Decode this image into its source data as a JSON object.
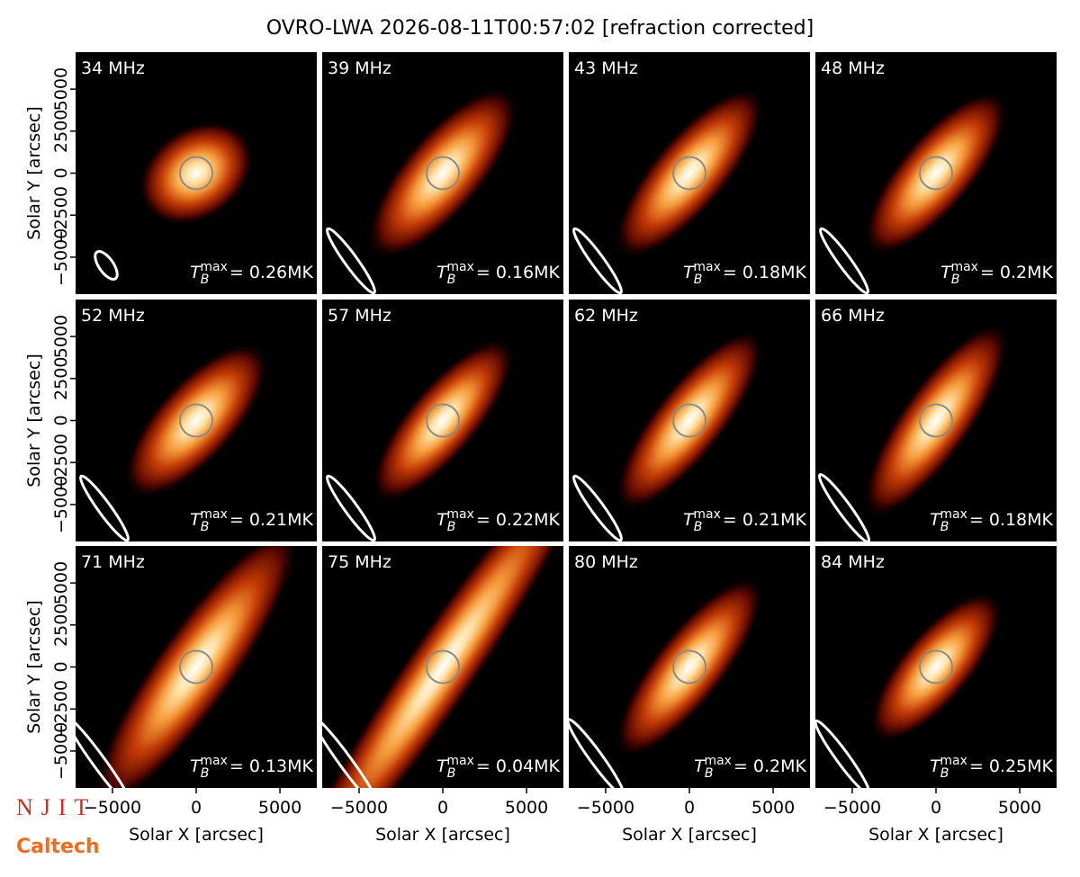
{
  "title": "OVRO-LWA 2026-08-11T00:57:02 [refraction corrected]",
  "logos": [
    "NJIT",
    "Caltech"
  ],
  "tb_symbol": "T",
  "tb_sub": "B",
  "tb_sup": "max",
  "chart_data": [
    {
      "type": "image",
      "title": "34 MHz",
      "annotation": "= 0.26MK",
      "xlim": [
        -7200,
        7200
      ],
      "ylim": [
        -7200,
        7200
      ],
      "ylabel": "Solar Y [arcsec]",
      "yticks": [
        {
          "value": -5000,
          "label": "−5000"
        },
        {
          "value": -2500,
          "label": "−2500"
        },
        0,
        2500,
        5000
      ]
    },
    {
      "type": "image",
      "title": "39 MHz",
      "annotation": "= 0.16MK",
      "xlim": [
        -7200,
        7200
      ],
      "ylim": [
        -7200,
        7200
      ]
    },
    {
      "type": "image",
      "title": "43 MHz",
      "annotation": "= 0.18MK",
      "xlim": [
        -7200,
        7200
      ],
      "ylim": [
        -7200,
        7200
      ]
    },
    {
      "type": "image",
      "title": "48 MHz",
      "annotation": "= 0.2MK",
      "xlim": [
        -7200,
        7200
      ],
      "ylim": [
        -7200,
        7200
      ]
    },
    {
      "type": "image",
      "title": "52 MHz",
      "annotation": "= 0.21MK",
      "xlim": [
        -7200,
        7200
      ],
      "ylim": [
        -7200,
        7200
      ],
      "ylabel": "Solar Y [arcsec]",
      "yticks": [
        {
          "value": -5000,
          "label": "−5000"
        },
        {
          "value": -2500,
          "label": "−2500"
        },
        0,
        2500,
        5000
      ]
    },
    {
      "type": "image",
      "title": "57 MHz",
      "annotation": "= 0.22MK",
      "xlim": [
        -7200,
        7200
      ],
      "ylim": [
        -7200,
        7200
      ]
    },
    {
      "type": "image",
      "title": "62 MHz",
      "annotation": "= 0.21MK",
      "xlim": [
        -7200,
        7200
      ],
      "ylim": [
        -7200,
        7200
      ]
    },
    {
      "type": "image",
      "title": "66 MHz",
      "annotation": "= 0.18MK",
      "xlim": [
        -7200,
        7200
      ],
      "ylim": [
        -7200,
        7200
      ]
    },
    {
      "type": "image",
      "title": "71 MHz",
      "annotation": "= 0.13MK",
      "xlim": [
        -7200,
        7200
      ],
      "ylim": [
        -7200,
        7200
      ],
      "ylabel": "Solar Y [arcsec]",
      "yticks": [
        {
          "value": -5000,
          "label": "−5000"
        },
        {
          "value": -2500,
          "label": "−2500"
        },
        0,
        2500,
        5000
      ],
      "xlabel": "Solar X [arcsec]",
      "xticks": [
        {
          "value": -5000,
          "label": "−5000"
        },
        0,
        5000
      ]
    },
    {
      "type": "image",
      "title": "75 MHz",
      "annotation": "= 0.04MK",
      "xlim": [
        -7200,
        7200
      ],
      "ylim": [
        -7200,
        7200
      ],
      "xlabel": "Solar X [arcsec]",
      "xticks": [
        {
          "value": -5000,
          "label": "−5000"
        },
        0,
        5000
      ]
    },
    {
      "type": "image",
      "title": "80 MHz",
      "annotation": "= 0.2MK",
      "xlim": [
        -7200,
        7200
      ],
      "ylim": [
        -7200,
        7200
      ],
      "xlabel": "Solar X [arcsec]",
      "xticks": [
        {
          "value": -5000,
          "label": "−5000"
        },
        0,
        5000
      ]
    },
    {
      "type": "image",
      "title": "84 MHz",
      "annotation": "= 0.25MK",
      "xlim": [
        -7200,
        7200
      ],
      "ylim": [
        -7200,
        7200
      ],
      "xlabel": "Solar X [arcsec]",
      "xticks": [
        {
          "value": -5000,
          "label": "−5000"
        },
        0,
        5000
      ]
    }
  ]
}
